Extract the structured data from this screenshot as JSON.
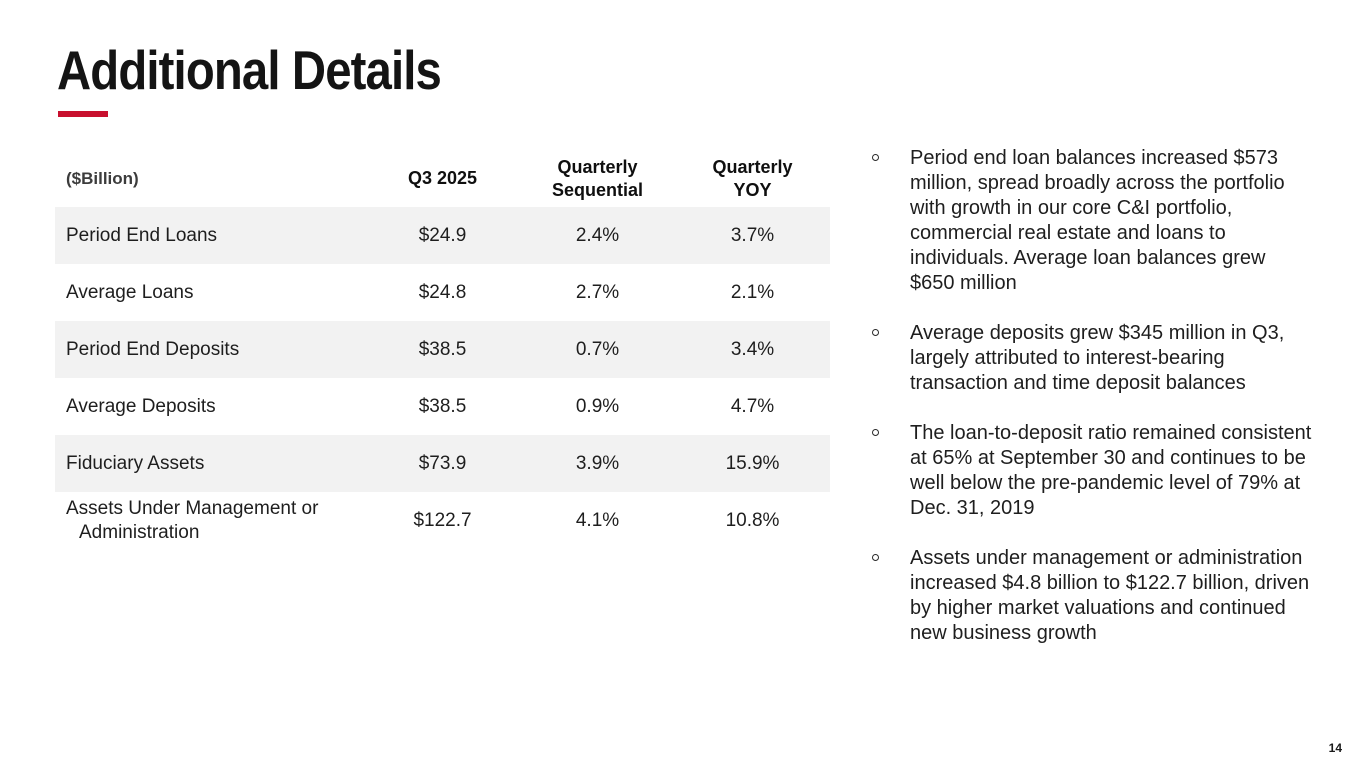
{
  "slide": {
    "title": "Additional Details",
    "page_number": "14"
  },
  "colors": {
    "accent_red": "#C8102E",
    "row_stripe": "#F2F2F2",
    "text": "#1E1E1E"
  },
  "table": {
    "unit_label": "($Billion)",
    "columns": {
      "period": "Q3 2025",
      "sequential": "Quarterly Sequential",
      "yoy": "Quarterly YOY"
    },
    "rows": [
      {
        "label": "Period End Loans",
        "q3": "$24.9",
        "sequential": "2.4%",
        "yoy": "3.7%"
      },
      {
        "label": "Average Loans",
        "q3": "$24.8",
        "sequential": "2.7%",
        "yoy": "2.1%"
      },
      {
        "label": "Period End Deposits",
        "q3": "$38.5",
        "sequential": "0.7%",
        "yoy": "3.4%"
      },
      {
        "label": "Average Deposits",
        "q3": "$38.5",
        "sequential": "0.9%",
        "yoy": "4.7%"
      },
      {
        "label": "Fiduciary Assets",
        "q3": "$73.9",
        "sequential": "3.9%",
        "yoy": "15.9%"
      },
      {
        "label": "Assets Under Management or Administration",
        "q3": "$122.7",
        "sequential": "4.1%",
        "yoy": "10.8%"
      }
    ]
  },
  "bullets": [
    {
      "text": "Period end loan balances increased $573 million, spread broadly across the portfolio with growth in our core C&I portfolio, commercial real estate and loans to individuals. Average loan balances grew $650 million"
    },
    {
      "text": "Average deposits grew $345 million in Q3, largely attributed to interest-bearing transaction and time deposit balances"
    },
    {
      "text": "The loan-to-deposit ratio remained consistent at 65% at September 30 and continues to be well below the pre-pandemic level of 79% at Dec. 31, 2019"
    },
    {
      "text": "Assets under management or administration increased $4.8 billion to $122.7 billion, driven by higher market valuations and continued new business growth"
    }
  ]
}
